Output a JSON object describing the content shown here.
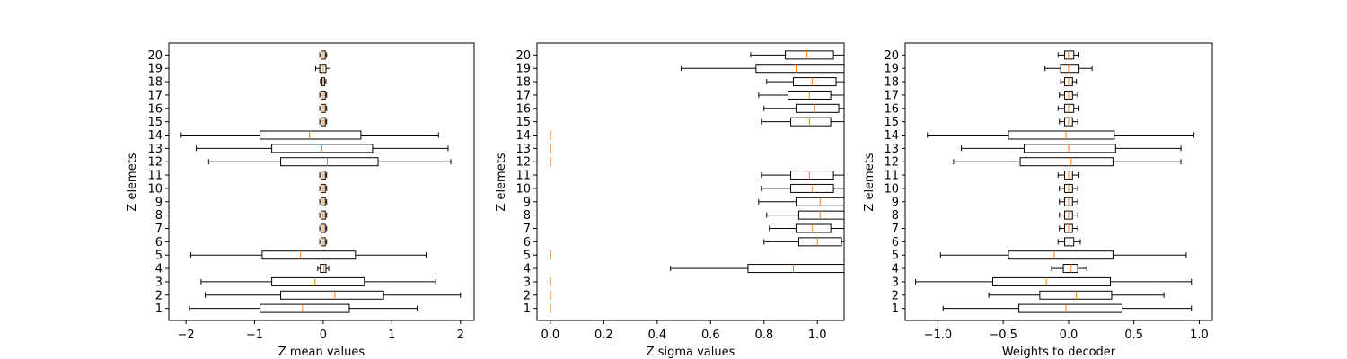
{
  "colors": {
    "box": "#000000",
    "median": "#ff7f0e",
    "frame": "#000000",
    "background": "#ffffff"
  },
  "chart_data": [
    {
      "type": "boxplot",
      "orientation": "horizontal",
      "title": "",
      "xlabel": "Z mean values",
      "ylabel": "Z elemets",
      "xlim": [
        -2.25,
        2.2
      ],
      "xticks": [
        -2,
        -1,
        0,
        1,
        2
      ],
      "xtick_labels": [
        "−2",
        "−1",
        "0",
        "1",
        "2"
      ],
      "categories": [
        "1",
        "2",
        "3",
        "4",
        "5",
        "6",
        "7",
        "8",
        "9",
        "10",
        "11",
        "12",
        "13",
        "14",
        "15",
        "16",
        "17",
        "18",
        "19",
        "20"
      ],
      "boxes": [
        {
          "whislo": -1.95,
          "q1": -0.92,
          "med": -0.3,
          "q3": 0.38,
          "whishi": 1.37
        },
        {
          "whislo": -1.72,
          "q1": -0.62,
          "med": 0.17,
          "q3": 0.88,
          "whishi": 2.0
        },
        {
          "whislo": -1.78,
          "q1": -0.75,
          "med": -0.12,
          "q3": 0.6,
          "whishi": 1.64
        },
        {
          "whislo": -0.08,
          "q1": -0.04,
          "med": 0.01,
          "q3": 0.04,
          "whishi": 0.08
        },
        {
          "whislo": -1.93,
          "q1": -0.89,
          "med": -0.33,
          "q3": 0.47,
          "whishi": 1.5
        },
        {
          "whislo": -0.05,
          "q1": -0.03,
          "med": 0.0,
          "q3": 0.03,
          "whishi": 0.05
        },
        {
          "whislo": -0.05,
          "q1": -0.03,
          "med": 0.0,
          "q3": 0.03,
          "whishi": 0.05
        },
        {
          "whislo": -0.05,
          "q1": -0.03,
          "med": 0.0,
          "q3": 0.03,
          "whishi": 0.05
        },
        {
          "whislo": -0.05,
          "q1": -0.03,
          "med": 0.0,
          "q3": 0.03,
          "whishi": 0.05
        },
        {
          "whislo": -0.05,
          "q1": -0.03,
          "med": 0.0,
          "q3": 0.03,
          "whishi": 0.05
        },
        {
          "whislo": -0.05,
          "q1": -0.03,
          "med": 0.0,
          "q3": 0.03,
          "whishi": 0.05
        },
        {
          "whislo": -1.67,
          "q1": -0.62,
          "med": 0.06,
          "q3": 0.8,
          "whishi": 1.86
        },
        {
          "whislo": -1.85,
          "q1": -0.75,
          "med": -0.02,
          "q3": 0.72,
          "whishi": 1.82
        },
        {
          "whislo": -2.07,
          "q1": -0.92,
          "med": -0.2,
          "q3": 0.55,
          "whishi": 1.68
        },
        {
          "whislo": -0.05,
          "q1": -0.03,
          "med": 0.0,
          "q3": 0.03,
          "whishi": 0.05
        },
        {
          "whislo": -0.05,
          "q1": -0.03,
          "med": 0.0,
          "q3": 0.03,
          "whishi": 0.05
        },
        {
          "whislo": -0.05,
          "q1": -0.03,
          "med": 0.0,
          "q3": 0.03,
          "whishi": 0.05
        },
        {
          "whislo": -0.04,
          "q1": -0.02,
          "med": 0.0,
          "q3": 0.02,
          "whishi": 0.04
        },
        {
          "whislo": -0.11,
          "q1": -0.05,
          "med": 0.0,
          "q3": 0.04,
          "whishi": 0.1
        },
        {
          "whislo": -0.05,
          "q1": -0.03,
          "med": 0.0,
          "q3": 0.03,
          "whishi": 0.05
        }
      ]
    },
    {
      "type": "boxplot",
      "orientation": "horizontal",
      "title": "",
      "xlabel": "Z sigma values",
      "ylabel": "Z elemets",
      "xlim": [
        -0.05,
        1.1
      ],
      "xticks": [
        0.0,
        0.2,
        0.4,
        0.6,
        0.8,
        1.0
      ],
      "xtick_labels": [
        "0.0",
        "0.2",
        "0.4",
        "0.6",
        "0.8",
        "1.0"
      ],
      "categories": [
        "1",
        "2",
        "3",
        "4",
        "5",
        "6",
        "7",
        "8",
        "9",
        "10",
        "11",
        "12",
        "13",
        "14",
        "15",
        "16",
        "17",
        "18",
        "19",
        "20"
      ],
      "boxes": [
        {
          "whislo": 0.0,
          "q1": 0.0,
          "med": 0.0,
          "q3": 0.0,
          "whishi": 0.0
        },
        {
          "whislo": 0.0,
          "q1": 0.0,
          "med": 0.0,
          "q3": 0.0,
          "whishi": 0.0
        },
        {
          "whislo": 0.0,
          "q1": 0.0,
          "med": 0.0,
          "q3": 0.0,
          "whishi": 0.0
        },
        {
          "whislo": 0.45,
          "q1": 0.74,
          "med": 0.91,
          "q3": 1.2,
          "whishi": 1.4
        },
        {
          "whislo": 0.0,
          "q1": 0.0,
          "med": 0.0,
          "q3": 0.0,
          "whishi": 0.0
        },
        {
          "whislo": 0.8,
          "q1": 0.93,
          "med": 1.0,
          "q3": 1.09,
          "whishi": 1.2
        },
        {
          "whislo": 0.82,
          "q1": 0.92,
          "med": 0.98,
          "q3": 1.05,
          "whishi": 1.15
        },
        {
          "whislo": 0.81,
          "q1": 0.93,
          "med": 1.01,
          "q3": 1.1,
          "whishi": 1.2
        },
        {
          "whislo": 0.78,
          "q1": 0.92,
          "med": 1.01,
          "q3": 1.1,
          "whishi": 1.2
        },
        {
          "whislo": 0.79,
          "q1": 0.9,
          "med": 0.98,
          "q3": 1.06,
          "whishi": 1.18
        },
        {
          "whislo": 0.79,
          "q1": 0.9,
          "med": 0.97,
          "q3": 1.06,
          "whishi": 1.18
        },
        {
          "whislo": 0.0,
          "q1": 0.0,
          "med": 0.0,
          "q3": 0.0,
          "whishi": 0.0
        },
        {
          "whislo": 0.0,
          "q1": 0.0,
          "med": 0.0,
          "q3": 0.0,
          "whishi": 0.0
        },
        {
          "whislo": 0.0,
          "q1": 0.0,
          "med": 0.0,
          "q3": 0.0,
          "whishi": 0.0
        },
        {
          "whislo": 0.79,
          "q1": 0.9,
          "med": 0.97,
          "q3": 1.05,
          "whishi": 1.16
        },
        {
          "whislo": 0.8,
          "q1": 0.92,
          "med": 0.99,
          "q3": 1.08,
          "whishi": 1.18
        },
        {
          "whislo": 0.78,
          "q1": 0.89,
          "med": 0.97,
          "q3": 1.05,
          "whishi": 1.17
        },
        {
          "whislo": 0.81,
          "q1": 0.91,
          "med": 0.98,
          "q3": 1.07,
          "whishi": 1.18
        },
        {
          "whislo": 0.49,
          "q1": 0.77,
          "med": 0.92,
          "q3": 1.2,
          "whishi": 1.4
        },
        {
          "whislo": 0.75,
          "q1": 0.88,
          "med": 0.96,
          "q3": 1.06,
          "whishi": 1.12
        }
      ]
    },
    {
      "type": "boxplot",
      "orientation": "horizontal",
      "title": "",
      "xlabel": "Weights to decoder",
      "ylabel": "Z elemets",
      "xlim": [
        -1.25,
        1.1
      ],
      "xticks": [
        -1.0,
        -0.5,
        0.0,
        0.5,
        1.0
      ],
      "xtick_labels": [
        "−1.0",
        "−0.5",
        "0.0",
        "0.5",
        "1.0"
      ],
      "categories": [
        "1",
        "2",
        "3",
        "4",
        "5",
        "6",
        "7",
        "8",
        "9",
        "10",
        "11",
        "12",
        "13",
        "14",
        "15",
        "16",
        "17",
        "18",
        "19",
        "20"
      ],
      "boxes": [
        {
          "whislo": -0.96,
          "q1": -0.38,
          "med": -0.02,
          "q3": 0.41,
          "whishi": 0.94
        },
        {
          "whislo": -0.61,
          "q1": -0.22,
          "med": 0.06,
          "q3": 0.33,
          "whishi": 0.73
        },
        {
          "whislo": -1.17,
          "q1": -0.58,
          "med": -0.17,
          "q3": 0.32,
          "whishi": 0.94
        },
        {
          "whislo": -0.13,
          "q1": -0.04,
          "med": 0.02,
          "q3": 0.07,
          "whishi": 0.14
        },
        {
          "whislo": -0.98,
          "q1": -0.46,
          "med": -0.11,
          "q3": 0.34,
          "whishi": 0.9
        },
        {
          "whislo": -0.08,
          "q1": -0.03,
          "med": 0.01,
          "q3": 0.04,
          "whishi": 0.09
        },
        {
          "whislo": -0.07,
          "q1": -0.03,
          "med": 0.0,
          "q3": 0.03,
          "whishi": 0.07
        },
        {
          "whislo": -0.07,
          "q1": -0.03,
          "med": 0.0,
          "q3": 0.03,
          "whishi": 0.07
        },
        {
          "whislo": -0.07,
          "q1": -0.03,
          "med": 0.0,
          "q3": 0.03,
          "whishi": 0.07
        },
        {
          "whislo": -0.07,
          "q1": -0.03,
          "med": 0.0,
          "q3": 0.03,
          "whishi": 0.07
        },
        {
          "whislo": -0.08,
          "q1": -0.03,
          "med": 0.0,
          "q3": 0.03,
          "whishi": 0.08
        },
        {
          "whislo": -0.88,
          "q1": -0.37,
          "med": 0.02,
          "q3": 0.34,
          "whishi": 0.86
        },
        {
          "whislo": -0.82,
          "q1": -0.34,
          "med": 0.0,
          "q3": 0.36,
          "whishi": 0.86
        },
        {
          "whislo": -1.08,
          "q1": -0.46,
          "med": -0.02,
          "q3": 0.35,
          "whishi": 0.96
        },
        {
          "whislo": -0.07,
          "q1": -0.03,
          "med": 0.0,
          "q3": 0.03,
          "whishi": 0.07
        },
        {
          "whislo": -0.08,
          "q1": -0.03,
          "med": 0.0,
          "q3": 0.04,
          "whishi": 0.08
        },
        {
          "whislo": -0.07,
          "q1": -0.03,
          "med": 0.0,
          "q3": 0.03,
          "whishi": 0.07
        },
        {
          "whislo": -0.06,
          "q1": -0.03,
          "med": 0.0,
          "q3": 0.03,
          "whishi": 0.06
        },
        {
          "whislo": -0.18,
          "q1": -0.06,
          "med": 0.0,
          "q3": 0.08,
          "whishi": 0.18
        },
        {
          "whislo": -0.08,
          "q1": -0.03,
          "med": 0.0,
          "q3": 0.04,
          "whishi": 0.08
        }
      ]
    }
  ]
}
